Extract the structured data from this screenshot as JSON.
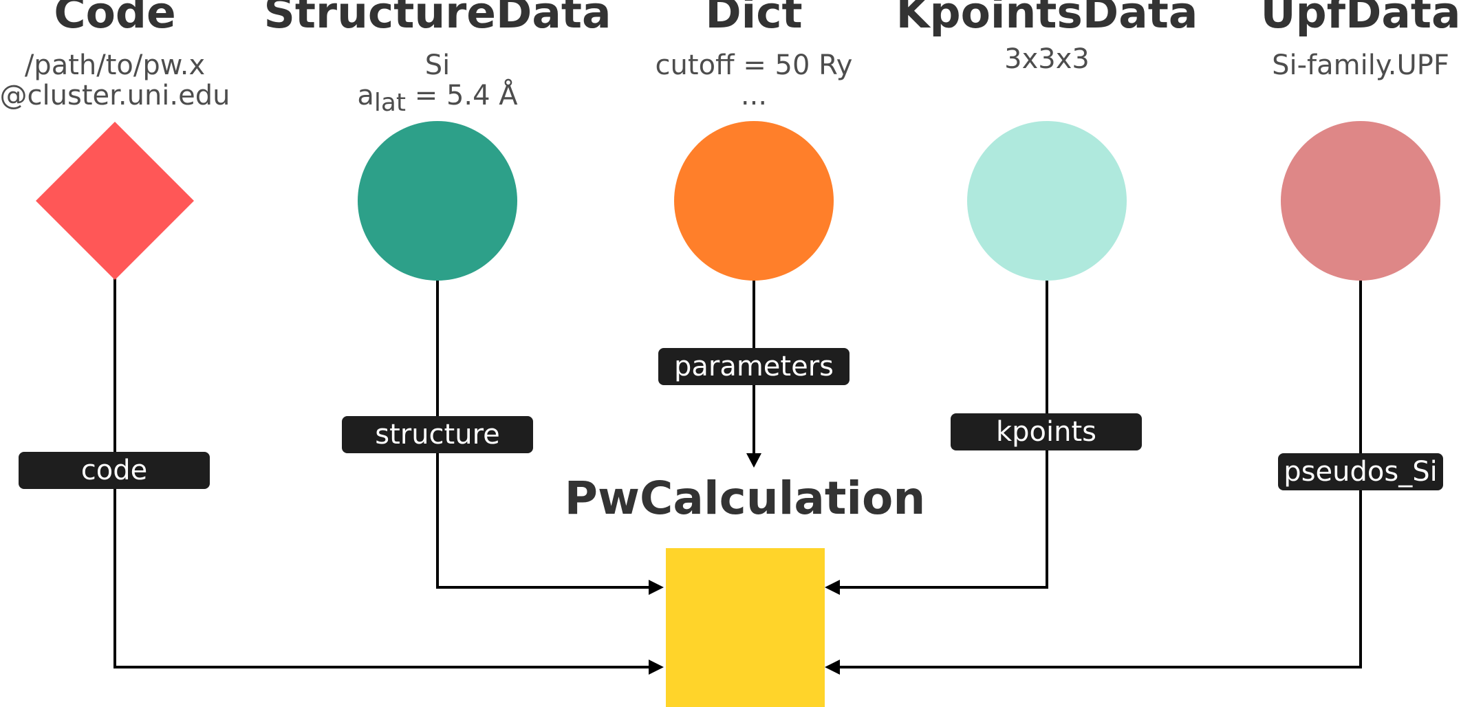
{
  "nodes": {
    "code": {
      "title": "Code",
      "sub_1": "/path/to/pw.x",
      "sub_2": "@cluster.uni.edu",
      "color": "#ff5757"
    },
    "structure": {
      "title": "StructureData",
      "sub_1": "Si",
      "sub_2_prefix": "a",
      "sub_2_script": "lat",
      "sub_2_suffix": " = 5.4 Å",
      "color": "#2da089"
    },
    "dict": {
      "title": "Dict",
      "sub_1": "cutoff = 50 Ry",
      "sub_2": "...",
      "color": "#ff7f2a"
    },
    "kpoints": {
      "title": "KpointsData",
      "sub_1": "3x3x3",
      "color": "#afe9dd"
    },
    "upf": {
      "title": "UpfData",
      "sub_1": "Si-family.UPF",
      "color": "#de8787"
    }
  },
  "calculation": {
    "title": "PwCalculation",
    "color": "#ffd42a"
  },
  "edges": {
    "code": "code",
    "structure": "structure",
    "parameters": "parameters",
    "kpoints": "kpoints",
    "pseudos": "pseudos_Si"
  }
}
